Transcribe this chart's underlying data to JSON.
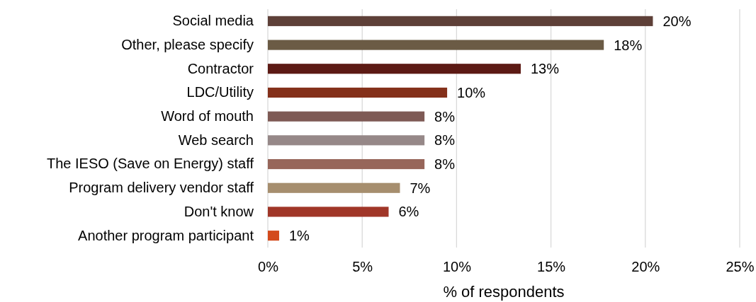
{
  "chart_data": {
    "type": "bar",
    "orientation": "horizontal",
    "xlabel": "% of respondents",
    "categories": [
      "Social media",
      "Other, please specify",
      "Contractor",
      "LDC/Utility",
      "Word of mouth",
      "Web search",
      "The IESO (Save on Energy) staff",
      "Program delivery vendor staff",
      "Don't know",
      "Another program participant"
    ],
    "values": [
      20.4,
      17.8,
      13.4,
      9.5,
      8.3,
      8.3,
      8.3,
      7.0,
      6.4,
      0.6
    ],
    "value_labels": [
      "20%",
      "18%",
      "13%",
      "10%",
      "8%",
      "8%",
      "8%",
      "7%",
      "6%",
      "1%"
    ],
    "colors": [
      "#5e4038",
      "#6b5b45",
      "#5c1a14",
      "#84301a",
      "#7e5a55",
      "#968888",
      "#97665a",
      "#a68e6e",
      "#a03628",
      "#d34a1c"
    ],
    "xlim": [
      0,
      25
    ],
    "xticks": [
      {
        "value": 0,
        "label": "0%"
      },
      {
        "value": 5,
        "label": "5%"
      },
      {
        "value": 10,
        "label": "10%"
      },
      {
        "value": 15,
        "label": "15%"
      },
      {
        "value": 20,
        "label": "20%"
      },
      {
        "value": 25,
        "label": "25%"
      }
    ],
    "grid": "x"
  }
}
